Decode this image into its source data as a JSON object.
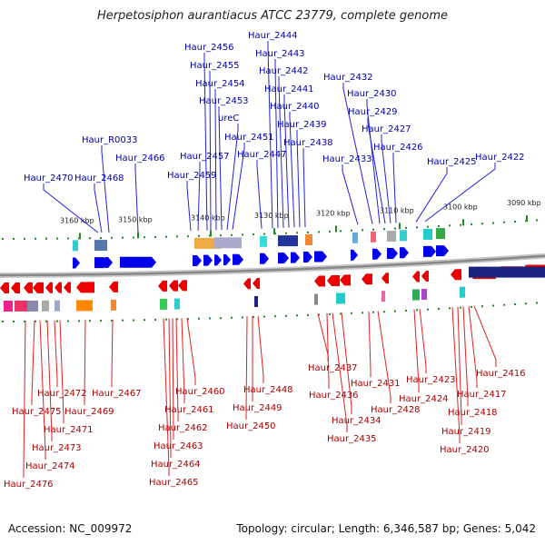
{
  "title": "Herpetosiphon aurantiacus ATCC 23779, complete genome",
  "footer": {
    "accession": "Accession: NC_009972",
    "summary": "Topology: circular; Length: 6,346,587 bp; Genes: 5,042"
  },
  "colors": {
    "forward_arrow": "#0000ee",
    "reverse_arrow": "#ee0000",
    "forward_label": "#0000aa",
    "reverse_label": "#aa0000",
    "rna_label": "#33bbdd",
    "backbone": "#888888",
    "tick": "#228822"
  },
  "kbp_ticks": [
    "3160 kbp",
    "3150 kbp",
    "3140 kbp",
    "3130 kbp",
    "3120 kbp",
    "3110 kbp",
    "3100 kbp",
    "3090 kbp"
  ],
  "forward_genes": [
    "Haur_2470",
    "Haur_2468",
    "Haur_R0033",
    "Haur_2466",
    "Haur_2459",
    "Haur_2457",
    "Haur_2456",
    "Haur_2455",
    "Haur_2454",
    "Haur_2453",
    "ureC",
    "Haur_2451",
    "Haur_2447",
    "Haur_2444",
    "Haur_2443",
    "Haur_2442",
    "Haur_2441",
    "Haur_2440",
    "Haur_2439",
    "Haur_2438",
    "Haur_2433",
    "Haur_2432",
    "Haur_2430",
    "Haur_2429",
    "Haur_2427",
    "Haur_2426",
    "Haur_2425",
    "Haur_2422"
  ],
  "reverse_genes": [
    "Haur_2476",
    "Haur_2475",
    "Haur_2474",
    "Haur_2473",
    "Haur_2472",
    "Haur_2471",
    "Haur_2469",
    "Haur_2467",
    "Haur_2465",
    "Haur_2464",
    "Haur_2463",
    "Haur_2462",
    "Haur_2461",
    "Haur_2460",
    "Haur_2450",
    "Haur_2449",
    "Haur_2448",
    "Haur_2437",
    "Haur_2436",
    "Haur_2435",
    "Haur_2434",
    "Haur_2431",
    "Haur_2428",
    "Haur_2424",
    "Haur_2423",
    "Haur_2420",
    "Haur_2419",
    "Haur_2418",
    "Haur_2417",
    "Haur_2416"
  ]
}
